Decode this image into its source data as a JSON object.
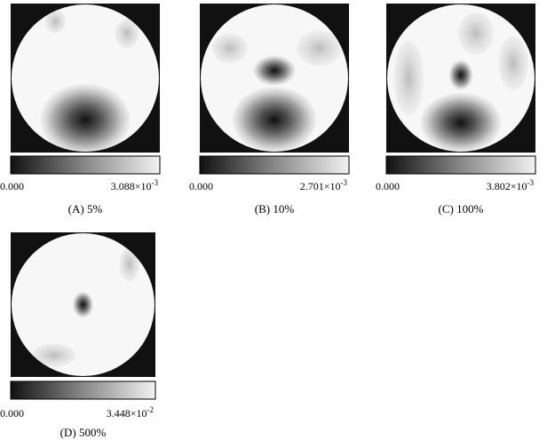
{
  "panels": [
    {
      "caption": "(A) 5%",
      "min_label": "0.000",
      "max_label": "3.088×10",
      "max_exponent": "-3"
    },
    {
      "caption": "(B) 10%",
      "min_label": "0.000",
      "max_label": "2.701×10",
      "max_exponent": "-3"
    },
    {
      "caption": "(C) 100%",
      "min_label": "0.000",
      "max_label": "3.802×10",
      "max_exponent": "-3"
    },
    {
      "caption": "(D) 500%",
      "min_label": "0.000",
      "max_label": "3.448×10",
      "max_exponent": "-2"
    }
  ]
}
